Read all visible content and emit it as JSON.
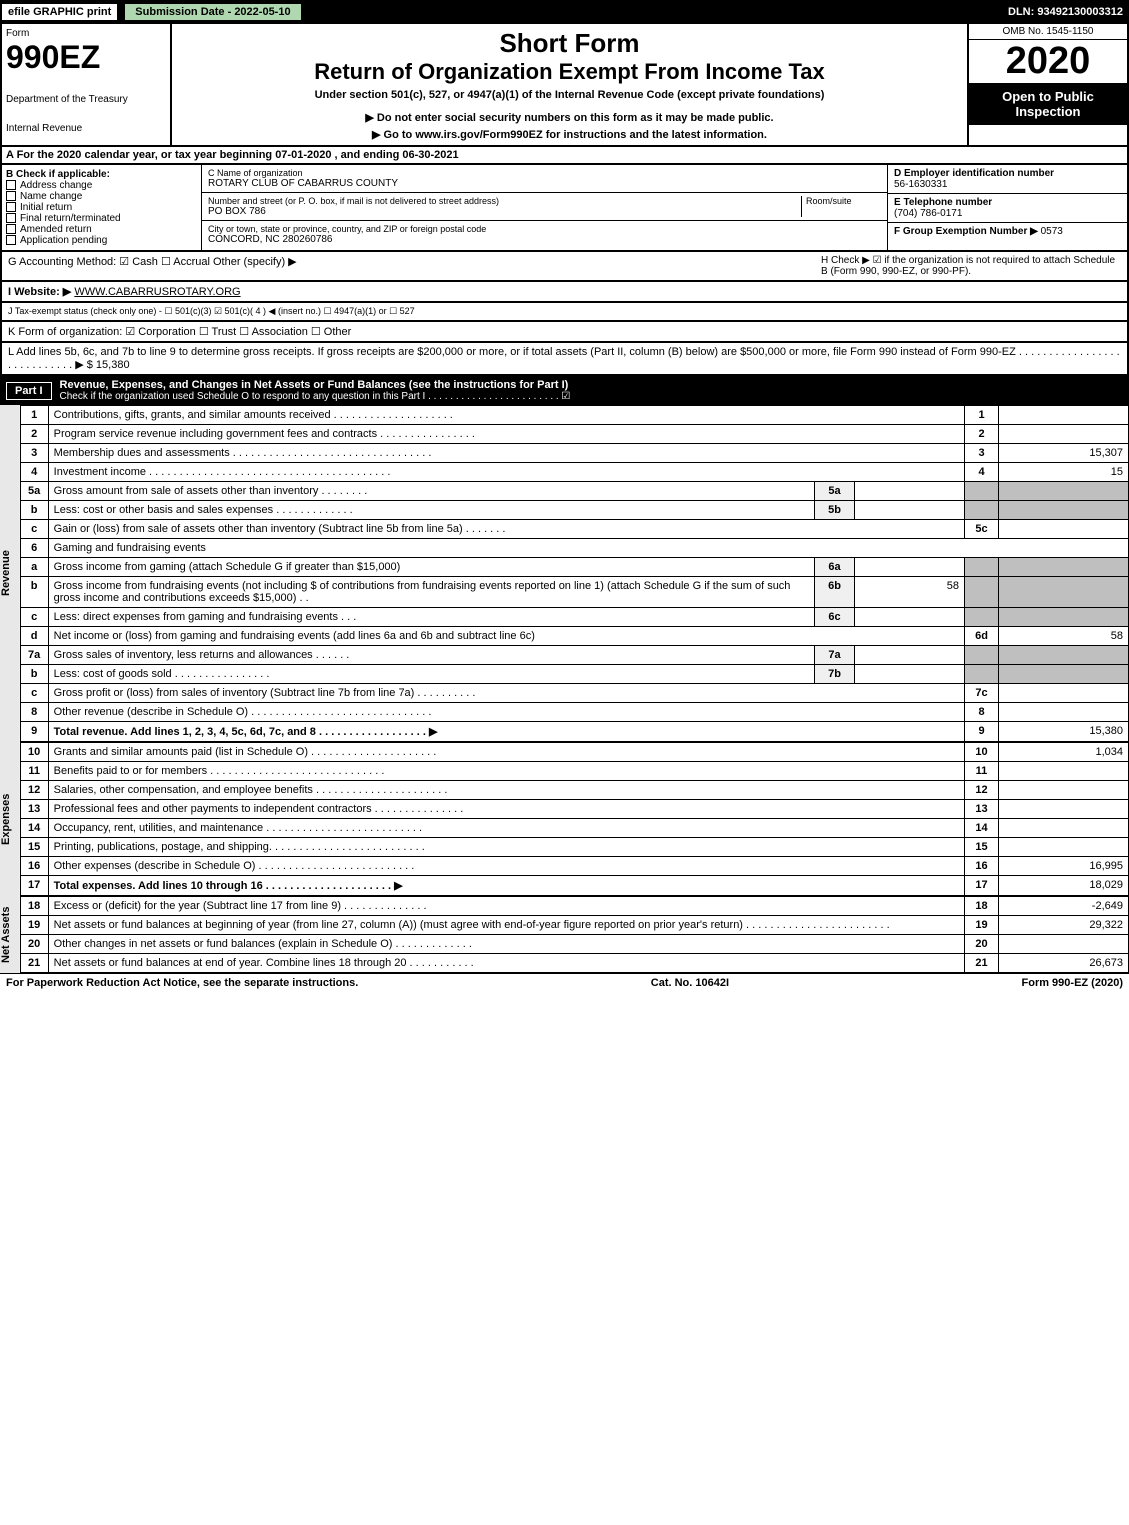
{
  "topbar": {
    "efile": "efile GRAPHIC print",
    "submission": "Submission Date - 2022-05-10",
    "dln": "DLN: 93492130003312"
  },
  "header": {
    "form_label": "Form",
    "form_num": "990EZ",
    "dept1": "Department of the Treasury",
    "dept2": "Internal Revenue",
    "short": "Short Form",
    "title": "Return of Organization Exempt From Income Tax",
    "subtitle": "Under section 501(c), 527, or 4947(a)(1) of the Internal Revenue Code (except private foundations)",
    "warn": "▶ Do not enter social security numbers on this form as it may be made public.",
    "goto": "▶ Go to www.irs.gov/Form990EZ for instructions and the latest information.",
    "omb": "OMB No. 1545-1150",
    "year": "2020",
    "open": "Open to Public Inspection"
  },
  "period": "A For the 2020 calendar year, or tax year beginning 07-01-2020 , and ending 06-30-2021",
  "boxB": {
    "label": "B  Check if applicable:",
    "opts": [
      "Address change",
      "Name change",
      "Initial return",
      "Final return/terminated",
      "Amended return",
      "Application pending"
    ]
  },
  "boxC": {
    "name_label": "C Name of organization",
    "name": "ROTARY CLUB OF CABARRUS COUNTY",
    "addr_label": "Number and street (or P. O. box, if mail is not delivered to street address)",
    "addr": "PO BOX 786",
    "room_label": "Room/suite",
    "city_label": "City or town, state or province, country, and ZIP or foreign postal code",
    "city": "CONCORD, NC  280260786"
  },
  "boxD": {
    "ein_label": "D Employer identification number",
    "ein": "56-1630331",
    "tel_label": "E Telephone number",
    "tel": "(704) 786-0171",
    "grp_label": "F Group Exemption Number  ▶",
    "grp": "0573"
  },
  "lineG": "G Accounting Method:   ☑ Cash   ☐ Accrual   Other (specify) ▶",
  "lineH": "H  Check ▶ ☑ if the organization is not required to attach Schedule B (Form 990, 990-EZ, or 990-PF).",
  "lineI_label": "I Website: ▶",
  "lineI_val": "WWW.CABARRUSROTARY.ORG",
  "lineJ": "J Tax-exempt status (check only one) -  ☐ 501(c)(3)  ☑ 501(c)( 4 ) ◀ (insert no.)  ☐ 4947(a)(1) or  ☐ 527",
  "lineK": "K Form of organization:   ☑ Corporation   ☐ Trust   ☐ Association   ☐ Other",
  "lineL": "L Add lines 5b, 6c, and 7b to line 9 to determine gross receipts. If gross receipts are $200,000 or more, or if total assets (Part II, column (B) below) are $500,000 or more, file Form 990 instead of Form 990-EZ  . . . . . . . . . . . . . . . . . . . . . . . . . . . .  ▶ $ 15,380",
  "part1": {
    "label": "Part I",
    "title": "Revenue, Expenses, and Changes in Net Assets or Fund Balances (see the instructions for Part I)",
    "check": "Check if the organization used Schedule O to respond to any question in this Part I . . . . . . . . . . . . . . . . . . . . . . . .  ☑"
  },
  "sections": {
    "revenue": "Revenue",
    "expenses": "Expenses",
    "netassets": "Net Assets"
  },
  "rows": [
    {
      "n": "1",
      "desc": "Contributions, gifts, grants, and similar amounts received . . . . . . . . . . . . . . . . . . . .",
      "ln": "1",
      "amt": ""
    },
    {
      "n": "2",
      "desc": "Program service revenue including government fees and contracts . . . . . . . . . . . . . . . .",
      "ln": "2",
      "amt": ""
    },
    {
      "n": "3",
      "desc": "Membership dues and assessments . . . . . . . . . . . . . . . . . . . . . . . . . . . . . . . . .",
      "ln": "3",
      "amt": "15,307"
    },
    {
      "n": "4",
      "desc": "Investment income . . . . . . . . . . . . . . . . . . . . . . . . . . . . . . . . . . . . . . . .",
      "ln": "4",
      "amt": "15"
    },
    {
      "n": "5a",
      "desc": "Gross amount from sale of assets other than inventory . . . . . . . .",
      "sub": "5a",
      "subval": ""
    },
    {
      "n": "b",
      "desc": "Less: cost or other basis and sales expenses . . . . . . . . . . . . .",
      "sub": "5b",
      "subval": ""
    },
    {
      "n": "c",
      "desc": "Gain or (loss) from sale of assets other than inventory (Subtract line 5b from line 5a) . . . . . . .",
      "ln": "5c",
      "amt": ""
    },
    {
      "n": "6",
      "desc": "Gaming and fundraising events"
    },
    {
      "n": "a",
      "desc": "Gross income from gaming (attach Schedule G if greater than $15,000)",
      "sub": "6a",
      "subval": ""
    },
    {
      "n": "b",
      "desc": "Gross income from fundraising events (not including $                 of contributions from fundraising events reported on line 1) (attach Schedule G if the sum of such gross income and contributions exceeds $15,000)    . .",
      "sub": "6b",
      "subval": "58"
    },
    {
      "n": "c",
      "desc": "Less: direct expenses from gaming and fundraising events    . . .",
      "sub": "6c",
      "subval": ""
    },
    {
      "n": "d",
      "desc": "Net income or (loss) from gaming and fundraising events (add lines 6a and 6b and subtract line 6c)",
      "ln": "6d",
      "amt": "58"
    },
    {
      "n": "7a",
      "desc": "Gross sales of inventory, less returns and allowances . . . . . .",
      "sub": "7a",
      "subval": ""
    },
    {
      "n": "b",
      "desc": "Less: cost of goods sold         . . . . . . . . . . . . . . . .",
      "sub": "7b",
      "subval": ""
    },
    {
      "n": "c",
      "desc": "Gross profit or (loss) from sales of inventory (Subtract line 7b from line 7a) . . . . . . . . . .",
      "ln": "7c",
      "amt": ""
    },
    {
      "n": "8",
      "desc": "Other revenue (describe in Schedule O) . . . . . . . . . . . . . . . . . . . . . . . . . . . . . .",
      "ln": "8",
      "amt": ""
    },
    {
      "n": "9",
      "desc": "Total revenue. Add lines 1, 2, 3, 4, 5c, 6d, 7c, and 8   . . . . . . . . . . . . . . . . . .   ▶",
      "ln": "9",
      "amt": "15,380",
      "bold": true
    }
  ],
  "exp_rows": [
    {
      "n": "10",
      "desc": "Grants and similar amounts paid (list in Schedule O) . . . . . . . . . . . . . . . . . . . . .",
      "ln": "10",
      "amt": "1,034"
    },
    {
      "n": "11",
      "desc": "Benefits paid to or for members       . . . . . . . . . . . . . . . . . . . . . . . . . . . . .",
      "ln": "11",
      "amt": ""
    },
    {
      "n": "12",
      "desc": "Salaries, other compensation, and employee benefits . . . . . . . . . . . . . . . . . . . . . .",
      "ln": "12",
      "amt": ""
    },
    {
      "n": "13",
      "desc": "Professional fees and other payments to independent contractors . . . . . . . . . . . . . . .",
      "ln": "13",
      "amt": ""
    },
    {
      "n": "14",
      "desc": "Occupancy, rent, utilities, and maintenance . . . . . . . . . . . . . . . . . . . . . . . . . .",
      "ln": "14",
      "amt": ""
    },
    {
      "n": "15",
      "desc": "Printing, publications, postage, and shipping. . . . . . . . . . . . . . . . . . . . . . . . . .",
      "ln": "15",
      "amt": ""
    },
    {
      "n": "16",
      "desc": "Other expenses (describe in Schedule O)     . . . . . . . . . . . . . . . . . . . . . . . . . .",
      "ln": "16",
      "amt": "16,995"
    },
    {
      "n": "17",
      "desc": "Total expenses. Add lines 10 through 16      . . . . . . . . . . . . . . . . . . . . .   ▶",
      "ln": "17",
      "amt": "18,029",
      "bold": true
    }
  ],
  "net_rows": [
    {
      "n": "18",
      "desc": "Excess or (deficit) for the year (Subtract line 17 from line 9)        . . . . . . . . . . . . . .",
      "ln": "18",
      "amt": "-2,649"
    },
    {
      "n": "19",
      "desc": "Net assets or fund balances at beginning of year (from line 27, column (A)) (must agree with end-of-year figure reported on prior year's return) . . . . . . . . . . . . . . . . . . . . . . . .",
      "ln": "19",
      "amt": "29,322"
    },
    {
      "n": "20",
      "desc": "Other changes in net assets or fund balances (explain in Schedule O) . . . . . . . . . . . . .",
      "ln": "20",
      "amt": ""
    },
    {
      "n": "21",
      "desc": "Net assets or fund balances at end of year. Combine lines 18 through 20 . . . . . . . . . . .",
      "ln": "21",
      "amt": "26,673"
    }
  ],
  "footer": {
    "left": "For Paperwork Reduction Act Notice, see the separate instructions.",
    "mid": "Cat. No. 10642I",
    "right": "Form 990-EZ (2020)"
  }
}
